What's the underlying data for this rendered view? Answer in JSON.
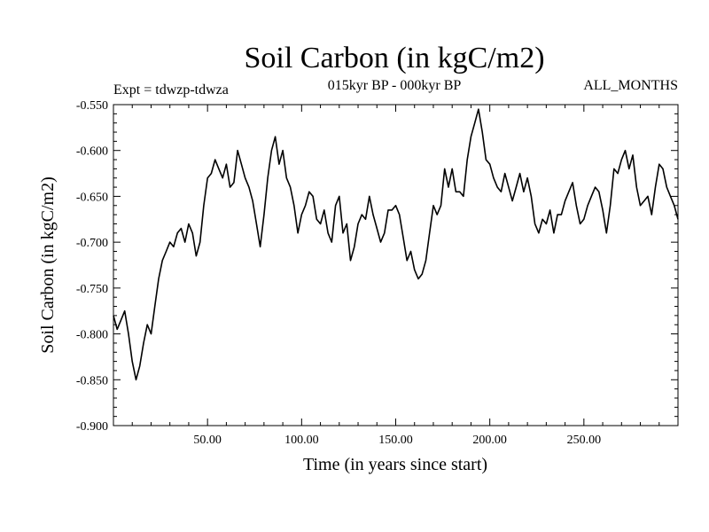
{
  "chart_data": {
    "type": "line",
    "title": "Soil Carbon (in kgC/m2)",
    "subtitle": "015kyr BP - 000kyr BP",
    "left_note": "Expt = tdwzp-tdwza",
    "right_note": "ALL_MONTHS",
    "xlabel": "Time (in years since start)",
    "ylabel": "Soil Carbon (in kgC/m2)",
    "xlim": [
      0,
      300
    ],
    "ylim": [
      -0.9,
      -0.55
    ],
    "xticks": [
      50,
      100,
      150,
      200,
      250
    ],
    "xtick_labels": [
      "50.00",
      "100.00",
      "150.00",
      "200.00",
      "250.00"
    ],
    "yticks": [
      -0.55,
      -0.6,
      -0.65,
      -0.7,
      -0.75,
      -0.8,
      -0.85,
      -0.9
    ],
    "ytick_labels": [
      "-0.550",
      "-0.600",
      "-0.650",
      "-0.700",
      "-0.750",
      "-0.800",
      "-0.850",
      "-0.900"
    ],
    "grid": false,
    "line_color": "#000000",
    "series": [
      {
        "x": [
          0,
          2,
          4,
          6,
          8,
          10,
          12,
          14,
          16,
          18,
          20,
          22,
          24,
          26,
          28,
          30,
          32,
          34,
          36,
          38,
          40,
          42,
          44,
          46,
          48,
          50,
          52,
          54,
          56,
          58,
          60,
          62,
          64,
          66,
          68,
          70,
          72,
          74,
          76,
          78,
          80,
          82,
          84,
          86,
          88,
          90,
          92,
          94,
          96,
          98,
          100,
          102,
          104,
          106,
          108,
          110,
          112,
          114,
          116,
          118,
          120,
          122,
          124,
          126,
          128,
          130,
          132,
          134,
          136,
          138,
          140,
          142,
          144,
          146,
          148,
          150,
          152,
          154,
          156,
          158,
          160,
          162,
          164,
          166,
          168,
          170,
          172,
          174,
          176,
          178,
          180,
          182,
          184,
          186,
          188,
          190,
          192,
          194,
          196,
          198,
          200,
          202,
          204,
          206,
          208,
          210,
          212,
          214,
          216,
          218,
          220,
          222,
          224,
          226,
          228,
          230,
          232,
          234,
          236,
          238,
          240,
          242,
          244,
          246,
          248,
          250,
          252,
          254,
          256,
          258,
          260,
          262,
          264,
          266,
          268,
          270,
          272,
          274,
          276,
          278,
          280,
          282,
          284,
          286,
          288,
          290,
          292,
          294,
          296,
          298,
          300
        ],
        "values": [
          -0.78,
          -0.795,
          -0.785,
          -0.775,
          -0.8,
          -0.83,
          -0.85,
          -0.835,
          -0.81,
          -0.79,
          -0.8,
          -0.77,
          -0.74,
          -0.72,
          -0.71,
          -0.7,
          -0.705,
          -0.69,
          -0.685,
          -0.7,
          -0.68,
          -0.69,
          -0.715,
          -0.7,
          -0.66,
          -0.63,
          -0.625,
          -0.61,
          -0.62,
          -0.63,
          -0.615,
          -0.64,
          -0.635,
          -0.6,
          -0.615,
          -0.63,
          -0.64,
          -0.655,
          -0.68,
          -0.705,
          -0.67,
          -0.63,
          -0.6,
          -0.585,
          -0.615,
          -0.6,
          -0.63,
          -0.64,
          -0.66,
          -0.69,
          -0.67,
          -0.66,
          -0.645,
          -0.65,
          -0.675,
          -0.68,
          -0.665,
          -0.69,
          -0.7,
          -0.66,
          -0.65,
          -0.69,
          -0.68,
          -0.72,
          -0.705,
          -0.68,
          -0.67,
          -0.675,
          -0.65,
          -0.67,
          -0.685,
          -0.7,
          -0.69,
          -0.665,
          -0.665,
          -0.66,
          -0.67,
          -0.695,
          -0.72,
          -0.71,
          -0.73,
          -0.74,
          -0.735,
          -0.72,
          -0.69,
          -0.66,
          -0.67,
          -0.66,
          -0.62,
          -0.64,
          -0.62,
          -0.645,
          -0.645,
          -0.65,
          -0.61,
          -0.585,
          -0.57,
          -0.555,
          -0.58,
          -0.61,
          -0.615,
          -0.63,
          -0.64,
          -0.645,
          -0.625,
          -0.64,
          -0.655,
          -0.64,
          -0.625,
          -0.645,
          -0.63,
          -0.65,
          -0.68,
          -0.69,
          -0.675,
          -0.68,
          -0.665,
          -0.69,
          -0.67,
          -0.67,
          -0.655,
          -0.645,
          -0.635,
          -0.66,
          -0.68,
          -0.675,
          -0.66,
          -0.65,
          -0.64,
          -0.645,
          -0.665,
          -0.69,
          -0.66,
          -0.62,
          -0.625,
          -0.61,
          -0.6,
          -0.62,
          -0.605,
          -0.64,
          -0.66,
          -0.655,
          -0.65,
          -0.67,
          -0.64,
          -0.615,
          -0.62,
          -0.64,
          -0.65,
          -0.66,
          -0.675
        ]
      }
    ]
  }
}
